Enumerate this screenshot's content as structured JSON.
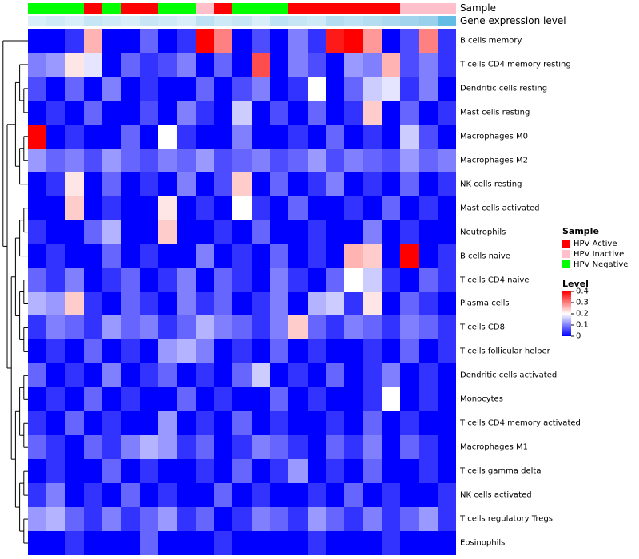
{
  "annotations": {
    "sample_label": "Sample",
    "expression_label": "Gene expression level",
    "sample_colors": {
      "HPV Active": "#FF0000",
      "HPV Inactive": "#FFC0CB",
      "HPV Negative": "#00FF00"
    },
    "column_sample": [
      "HPV Negative",
      "HPV Negative",
      "HPV Negative",
      "HPV Active",
      "HPV Negative",
      "HPV Active",
      "HPV Active",
      "HPV Negative",
      "HPV Negative",
      "HPV Inactive",
      "HPV Active",
      "HPV Negative",
      "HPV Negative",
      "HPV Negative",
      "HPV Active",
      "HPV Active",
      "HPV Active",
      "HPV Active",
      "HPV Active",
      "HPV Active",
      "HPV Inactive",
      "HPV Inactive",
      "HPV Inactive"
    ],
    "expression_colors": [
      "#D8EEF9",
      "#CFEAF7",
      "#D8EEF9",
      "#C6E6F5",
      "#CFEAF7",
      "#D8EEF9",
      "#C6E6F5",
      "#CFEAF7",
      "#D8EEF9",
      "#BDE2F3",
      "#CFEAF7",
      "#C6E6F5",
      "#D8EEF9",
      "#BDE2F3",
      "#C6E6F5",
      "#CFEAF7",
      "#B4DDF1",
      "#BDE2F3",
      "#B4DDF1",
      "#ABD9EF",
      "#A2D4ED",
      "#99D0EB",
      "#63BCE4"
    ]
  },
  "legend": {
    "sample_title": "Sample",
    "sample_items": [
      {
        "label": "HPV Active",
        "color": "#FF0000"
      },
      {
        "label": "HPV Inactive",
        "color": "#FFC0CB"
      },
      {
        "label": "HPV Negative",
        "color": "#00FF00"
      }
    ],
    "level_title": "Level",
    "level_ticks": [
      "0.4",
      "0.3",
      "0.2",
      "0.1",
      "0"
    ]
  },
  "chart_data": {
    "type": "heatmap",
    "title": "",
    "rows": [
      "B cells memory",
      "T cells CD4 memory resting",
      "Dendritic cells resting",
      "Mast cells resting",
      "Macrophages M0",
      "Macrophages M2",
      "NK cells resting",
      "Mast cells activated",
      "Neutrophils",
      "B cells naive",
      "T cells CD4 naive",
      "Plasma cells",
      "T cells CD8",
      "T cells follicular helper",
      "Dendritic cells activated",
      "Monocytes",
      "T cells CD4 memory activated",
      "Macrophages M1",
      "T cells gamma delta",
      "NK cells activated",
      "T cells regulatory Tregs",
      "Eosinophils"
    ],
    "n_cols": 23,
    "colormap": {
      "min": 0,
      "mid": 0.2,
      "max": 0.4,
      "min_color": "#0000FF",
      "mid_color": "#FFFFFF",
      "max_color": "#FF0000"
    },
    "values": [
      [
        0,
        0,
        0.04,
        0.26,
        0,
        0,
        0.08,
        0,
        0.04,
        0.4,
        0.3,
        0,
        0.06,
        0,
        0.1,
        0.04,
        0.38,
        0.4,
        0.28,
        0,
        0.06,
        0.3,
        0.04
      ],
      [
        0.1,
        0.12,
        0.22,
        0.18,
        0,
        0.08,
        0.04,
        0.06,
        0.1,
        0,
        0.08,
        0,
        0.34,
        0,
        0.1,
        0.06,
        0,
        0.12,
        0.1,
        0.26,
        0.06,
        0.1,
        0.04
      ],
      [
        0.06,
        0,
        0.08,
        0,
        0.1,
        0,
        0.04,
        0,
        0,
        0.08,
        0,
        0.06,
        0.1,
        0,
        0.04,
        0.2,
        0,
        0.08,
        0.16,
        0.18,
        0.04,
        0.1,
        0
      ],
      [
        0,
        0.04,
        0,
        0.08,
        0,
        0,
        0.06,
        0,
        0.1,
        0.04,
        0,
        0.16,
        0,
        0.06,
        0,
        0.08,
        0,
        0.04,
        0.24,
        0,
        0.08,
        0,
        0.04
      ],
      [
        0.4,
        0,
        0.04,
        0,
        0,
        0.08,
        0,
        0.2,
        0.04,
        0,
        0,
        0.1,
        0,
        0,
        0.04,
        0,
        0.08,
        0,
        0.04,
        0,
        0.16,
        0.06,
        0
      ],
      [
        0.12,
        0.08,
        0.1,
        0.06,
        0.12,
        0.08,
        0.06,
        0.1,
        0.08,
        0.12,
        0.06,
        0.08,
        0.1,
        0.06,
        0.08,
        0.12,
        0.06,
        0.1,
        0.08,
        0.06,
        0.12,
        0.08,
        0.1
      ],
      [
        0,
        0.04,
        0.22,
        0,
        0.08,
        0,
        0.04,
        0,
        0.1,
        0,
        0.06,
        0.24,
        0,
        0.08,
        0,
        0.04,
        0.1,
        0,
        0.04,
        0,
        0.08,
        0,
        0.04
      ],
      [
        0,
        0,
        0.24,
        0,
        0.04,
        0,
        0,
        0.22,
        0,
        0.04,
        0,
        0.2,
        0.04,
        0,
        0.08,
        0,
        0,
        0.04,
        0,
        0.08,
        0,
        0.04,
        0
      ],
      [
        0.04,
        0,
        0,
        0.08,
        0.14,
        0,
        0,
        0.24,
        0,
        0,
        0.04,
        0,
        0.08,
        0,
        0,
        0.04,
        0,
        0,
        0.1,
        0,
        0.04,
        0,
        0
      ],
      [
        0,
        0.04,
        0,
        0,
        0.08,
        0,
        0.04,
        0,
        0,
        0.1,
        0,
        0.04,
        0,
        0.08,
        0,
        0.04,
        0,
        0.26,
        0.24,
        0,
        0.4,
        0,
        0.04
      ],
      [
        0.08,
        0.04,
        0.1,
        0,
        0.04,
        0.08,
        0,
        0.04,
        0.1,
        0,
        0.08,
        0.04,
        0,
        0.1,
        0.04,
        0,
        0.08,
        0.2,
        0.16,
        0.04,
        0,
        0.08,
        0.04
      ],
      [
        0.14,
        0.12,
        0.24,
        0.04,
        0,
        0.08,
        0.04,
        0,
        0.1,
        0.04,
        0.08,
        0,
        0.04,
        0.1,
        0,
        0.14,
        0.16,
        0.04,
        0.22,
        0,
        0.08,
        0.04,
        0
      ],
      [
        0.04,
        0.1,
        0.08,
        0.04,
        0.12,
        0.08,
        0.1,
        0.04,
        0.08,
        0.14,
        0.1,
        0.08,
        0.04,
        0.1,
        0.24,
        0.08,
        0.04,
        0.1,
        0.08,
        0.04,
        0.1,
        0.08,
        0.04
      ],
      [
        0,
        0.04,
        0,
        0.08,
        0,
        0.04,
        0,
        0.12,
        0.14,
        0.1,
        0,
        0.04,
        0,
        0.08,
        0,
        0.04,
        0,
        0,
        0.04,
        0,
        0.08,
        0,
        0.04
      ],
      [
        0.08,
        0,
        0.04,
        0,
        0.1,
        0,
        0.04,
        0.08,
        0,
        0.04,
        0,
        0.08,
        0.16,
        0,
        0.04,
        0,
        0.08,
        0,
        0.04,
        0.1,
        0,
        0.04,
        0
      ],
      [
        0,
        0.04,
        0,
        0.08,
        0,
        0.04,
        0,
        0,
        0.08,
        0,
        0.04,
        0,
        0,
        0.08,
        0,
        0.04,
        0,
        0,
        0.04,
        0.2,
        0,
        0.04,
        0
      ],
      [
        0.04,
        0,
        0.08,
        0,
        0.04,
        0,
        0,
        0.12,
        0,
        0.04,
        0,
        0.08,
        0,
        0.04,
        0,
        0,
        0.04,
        0,
        0.08,
        0,
        0.04,
        0,
        0
      ],
      [
        0.08,
        0.04,
        0,
        0.08,
        0.04,
        0.1,
        0.14,
        0.12,
        0.04,
        0.08,
        0,
        0.04,
        0.1,
        0.08,
        0.04,
        0,
        0.08,
        0.04,
        0.1,
        0,
        0.08,
        0.04,
        0
      ],
      [
        0,
        0.04,
        0,
        0,
        0.08,
        0,
        0.04,
        0,
        0,
        0.04,
        0,
        0.08,
        0,
        0.04,
        0.12,
        0,
        0.04,
        0,
        0.08,
        0,
        0,
        0.04,
        0
      ],
      [
        0.04,
        0.1,
        0,
        0.04,
        0,
        0.08,
        0,
        0.04,
        0,
        0,
        0.08,
        0,
        0.04,
        0,
        0,
        0.04,
        0,
        0.08,
        0,
        0.04,
        0,
        0,
        0.04
      ],
      [
        0.12,
        0.14,
        0.08,
        0.04,
        0.1,
        0.04,
        0.08,
        0.12,
        0.04,
        0.08,
        0,
        0.04,
        0.1,
        0.08,
        0.04,
        0.12,
        0.08,
        0.04,
        0.1,
        0.04,
        0.08,
        0.12,
        0.04
      ],
      [
        0,
        0,
        0.04,
        0,
        0,
        0,
        0.08,
        0,
        0,
        0,
        0.04,
        0,
        0,
        0,
        0,
        0.04,
        0,
        0,
        0,
        0.04,
        0,
        0,
        0
      ]
    ],
    "dendrogram_tree": [
      0,
      [
        [
          [
            1,
            [
              2,
              3
            ]
          ],
          [
            [
              4,
              5
            ],
            6
          ]
        ],
        [
          [
            [
              [
                7,
                8
              ],
              9
            ],
            [
              [
                10,
                11
              ],
              [
                12,
                13
              ]
            ]
          ],
          [
            [
              [
                14,
                15
              ],
              [
                16,
                17
              ]
            ],
            [
              [
                18,
                19
              ],
              [
                20,
                21
              ]
            ]
          ]
        ]
      ]
    ]
  }
}
